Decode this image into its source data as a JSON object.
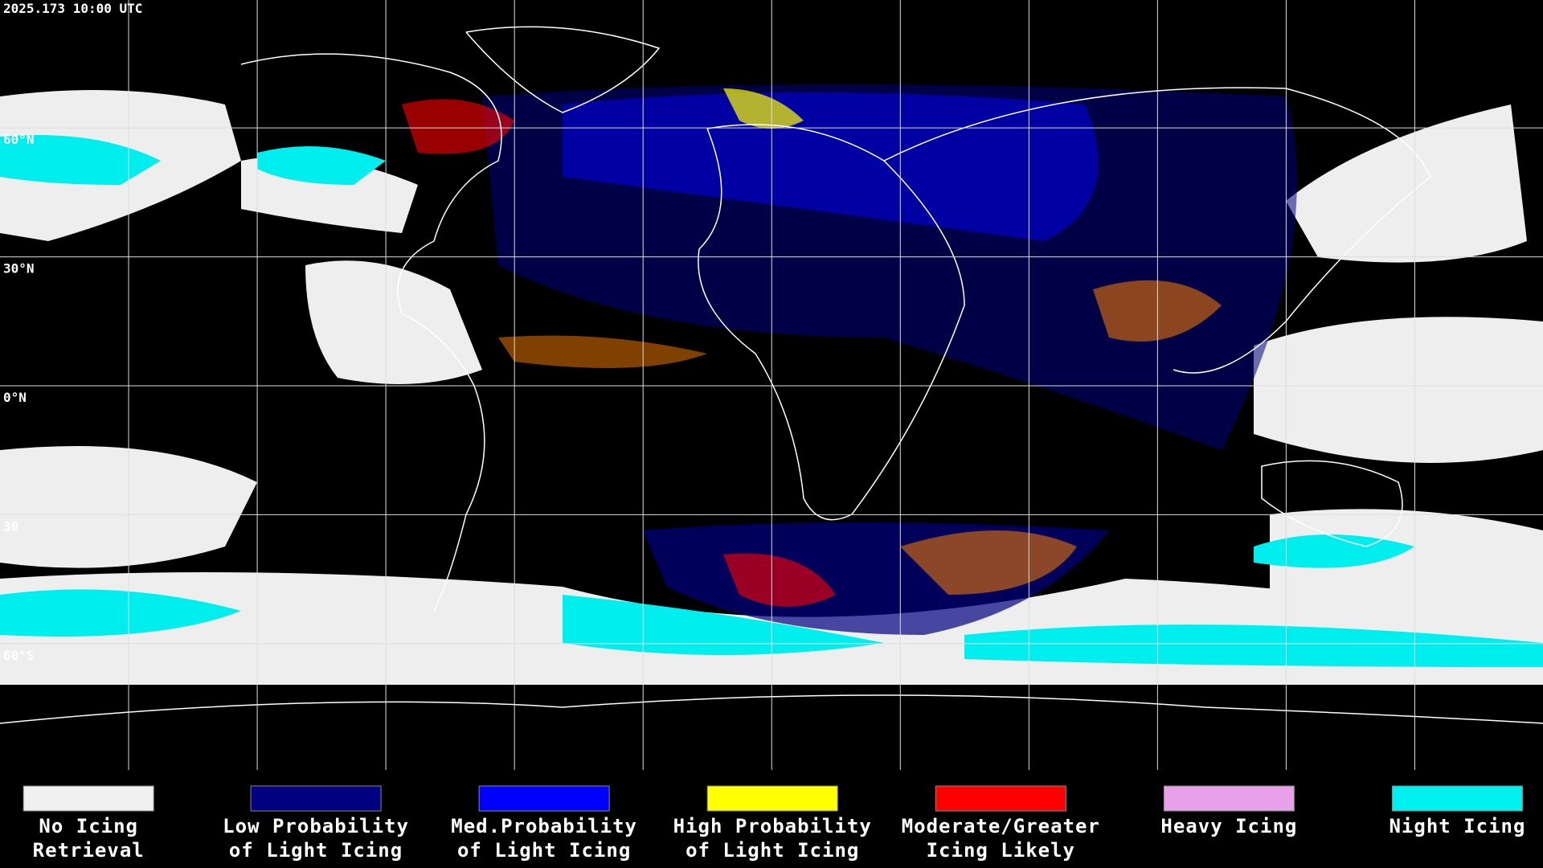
{
  "header": {
    "timestamp": "2025.173 10:00 UTC"
  },
  "map": {
    "latitude_labels": [
      "60°N",
      "30°N",
      "0°N",
      "30",
      "60°S"
    ]
  },
  "legend": [
    {
      "lines": [
        "No Icing",
        "Retrieval"
      ],
      "color": "#f0f0f0"
    },
    {
      "lines": [
        "Low Probability",
        "of Light Icing"
      ],
      "color": "#000080"
    },
    {
      "lines": [
        "Med.Probability",
        "of Light Icing"
      ],
      "color": "#0000ff"
    },
    {
      "lines": [
        "High Probability",
        "of Light Icing"
      ],
      "color": "#ffff00"
    },
    {
      "lines": [
        "Moderate/Greater",
        "Icing Likely"
      ],
      "color": "#ff0000"
    },
    {
      "lines": [
        "Heavy Icing"
      ],
      "color": "#e8a0e8"
    },
    {
      "lines": [
        "Night Icing"
      ],
      "color": "#00f0f0"
    }
  ]
}
